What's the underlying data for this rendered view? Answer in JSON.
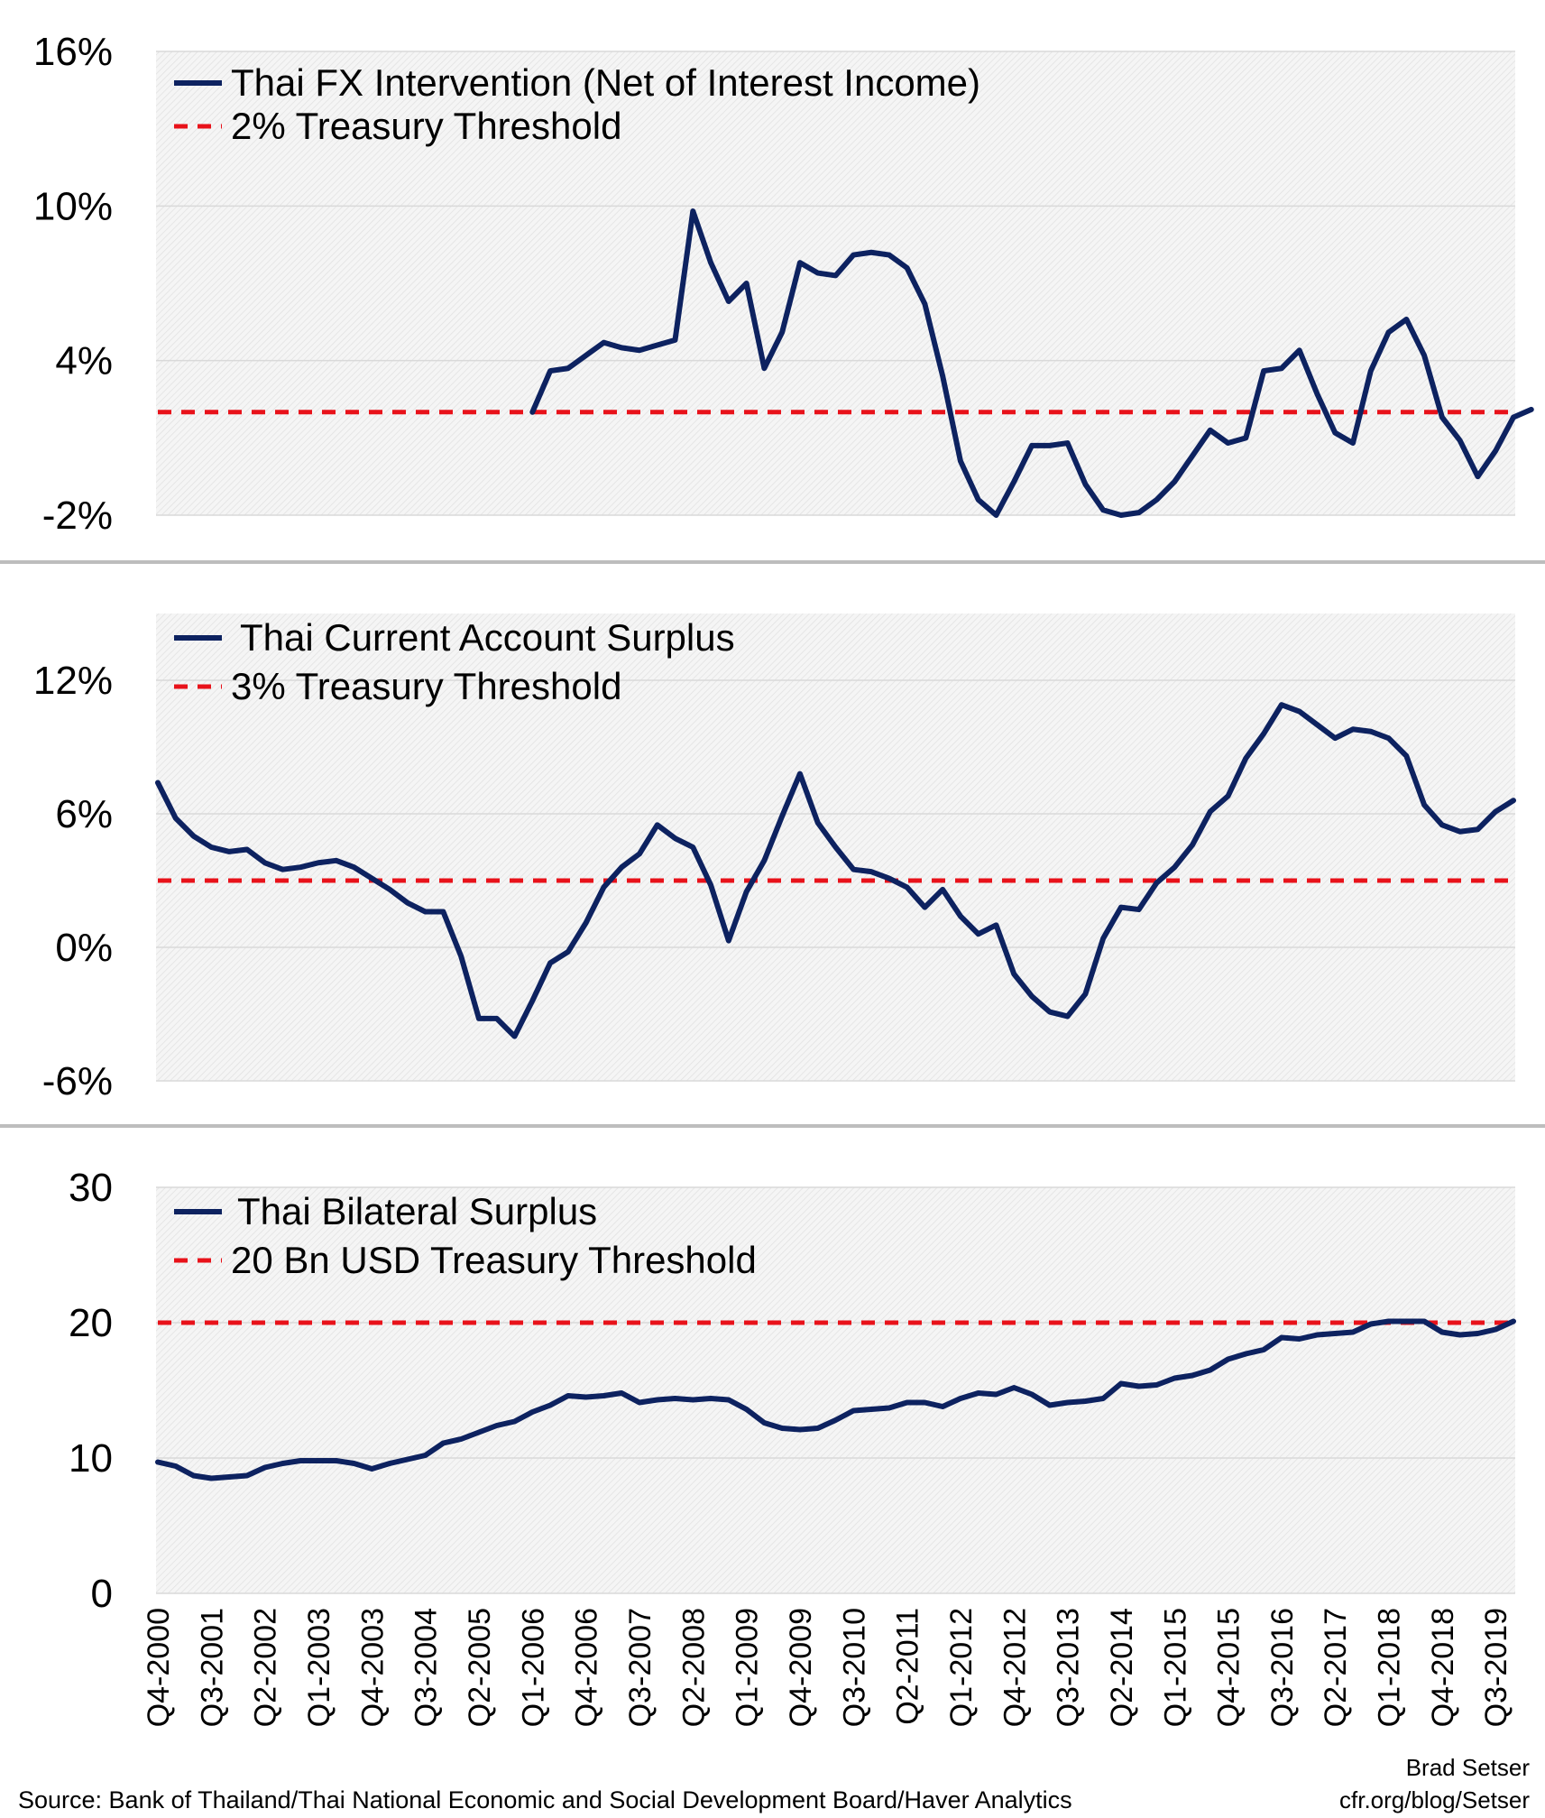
{
  "colors": {
    "series": "#0d2260",
    "threshold": "#e8121a",
    "grid": "#d9d9d9",
    "separator": "#bdbdbd"
  },
  "chart_data": [
    {
      "type": "line",
      "legend": [
        "Thai FX Intervention (Net of Interest Income)",
        "2% Treasury Threshold"
      ],
      "yticks": [
        16,
        10,
        4,
        -2
      ],
      "yticklabels": [
        "16%",
        "10%",
        "4%",
        "-2%"
      ],
      "ylim": [
        -2,
        16
      ],
      "threshold": 2,
      "series": [
        {
          "name": "Thai FX Intervention (Net of Interest Income)",
          "start_index": 21,
          "values": [
            2.0,
            3.6,
            3.7,
            4.2,
            4.7,
            4.5,
            4.4,
            4.6,
            4.8,
            9.8,
            7.8,
            6.3,
            7.0,
            3.7,
            5.1,
            7.8,
            7.4,
            7.3,
            8.1,
            8.2,
            8.1,
            7.6,
            6.2,
            3.4,
            0.1,
            -1.4,
            -2.1,
            -0.7,
            0.7,
            0.7,
            0.8,
            -0.8,
            -1.8,
            -2.2,
            -1.9,
            -1.4,
            -0.7,
            0.3,
            1.3,
            0.8,
            1.0,
            3.6,
            3.7,
            4.4,
            2.7,
            1.2,
            0.8,
            3.6,
            5.1,
            5.6,
            4.2,
            1.8,
            0.9,
            -0.5,
            0.5,
            1.8,
            2.1
          ]
        },
        {
          "name": "2% Treasury Threshold",
          "values": [
            2,
            2
          ]
        }
      ]
    },
    {
      "type": "line",
      "legend": [
        "Thai Current Account Surplus",
        "3% Treasury Threshold"
      ],
      "yticks": [
        12,
        6,
        0,
        -6
      ],
      "yticklabels": [
        "12%",
        "6%",
        "0%",
        "-6%"
      ],
      "ylim": [
        -6,
        15
      ],
      "threshold": 3,
      "series": [
        {
          "name": "Thai Current Account Surplus",
          "start_index": 0,
          "values": [
            7.4,
            5.8,
            5.0,
            4.5,
            4.3,
            4.4,
            3.8,
            3.5,
            3.6,
            3.8,
            3.9,
            3.6,
            3.1,
            2.6,
            2.0,
            1.6,
            1.6,
            -0.4,
            -3.2,
            -3.2,
            -4.0,
            -2.4,
            -0.7,
            -0.2,
            1.1,
            2.7,
            3.6,
            4.2,
            5.5,
            4.9,
            4.5,
            2.8,
            0.3,
            2.5,
            3.9,
            5.9,
            7.8,
            5.6,
            4.5,
            3.5,
            3.4,
            3.1,
            2.7,
            1.8,
            2.6,
            1.4,
            0.6,
            1.0,
            -1.2,
            -2.2,
            -2.9,
            -3.1,
            -2.1,
            0.4,
            1.8,
            1.7,
            2.9,
            3.6,
            4.6,
            6.1,
            6.8,
            8.5,
            9.6,
            10.9,
            10.6,
            10.0,
            9.4,
            9.8,
            9.7,
            9.4,
            8.6,
            6.4,
            5.5,
            5.2,
            5.3,
            6.1,
            6.6
          ]
        },
        {
          "name": "3% Treasury Threshold",
          "values": [
            3,
            3
          ]
        }
      ]
    },
    {
      "type": "line",
      "legend": [
        "Thai Bilateral Surplus",
        "20 Bn USD Treasury Threshold"
      ],
      "yticks": [
        30,
        20,
        10,
        0
      ],
      "yticklabels": [
        "30",
        "20",
        "10",
        "0"
      ],
      "ylim": [
        0,
        30
      ],
      "threshold": 20,
      "series": [
        {
          "name": "Thai Bilateral Surplus",
          "start_index": 0,
          "values": [
            9.7,
            9.4,
            8.7,
            8.5,
            8.6,
            8.7,
            9.3,
            9.6,
            9.8,
            9.8,
            9.8,
            9.6,
            9.2,
            9.6,
            9.9,
            10.2,
            11.1,
            11.4,
            11.9,
            12.4,
            12.7,
            13.4,
            13.9,
            14.6,
            14.5,
            14.6,
            14.8,
            14.1,
            14.3,
            14.4,
            14.3,
            14.4,
            14.3,
            13.6,
            12.6,
            12.2,
            12.1,
            12.2,
            12.8,
            13.5,
            13.6,
            13.7,
            14.1,
            14.1,
            13.8,
            14.4,
            14.8,
            14.7,
            15.2,
            14.7,
            13.9,
            14.1,
            14.2,
            14.4,
            15.5,
            15.3,
            15.4,
            15.9,
            16.1,
            16.5,
            17.3,
            17.7,
            18.0,
            18.9,
            18.8,
            19.1,
            19.2,
            19.3,
            19.9,
            20.1,
            20.1,
            20.1,
            19.3,
            19.1,
            19.2,
            19.5,
            20.1
          ]
        },
        {
          "name": "20 Bn USD Treasury Threshold",
          "values": [
            20,
            20
          ]
        }
      ]
    }
  ],
  "x_axis": {
    "labels": [
      "Q4-2000",
      "Q3-2001",
      "Q2-2002",
      "Q1-2003",
      "Q4-2003",
      "Q3-2004",
      "Q2-2005",
      "Q1-2006",
      "Q4-2006",
      "Q3-2007",
      "Q2-2008",
      "Q1-2009",
      "Q4-2009",
      "Q3-2010",
      "Q2-2011",
      "Q1-2012",
      "Q4-2012",
      "Q3-2013",
      "Q2-2014",
      "Q1-2015",
      "Q4-2015",
      "Q3-2016",
      "Q2-2017",
      "Q1-2018",
      "Q4-2018",
      "Q3-2019"
    ],
    "every_n_quarters": 3,
    "n_quarters": 77
  },
  "footer": {
    "source": "Source: Bank of Thailand/Thai National Economic and Social Development Board/Haver Analytics",
    "author": "Brad Setser",
    "site": "cfr.org/blog/Setser"
  }
}
